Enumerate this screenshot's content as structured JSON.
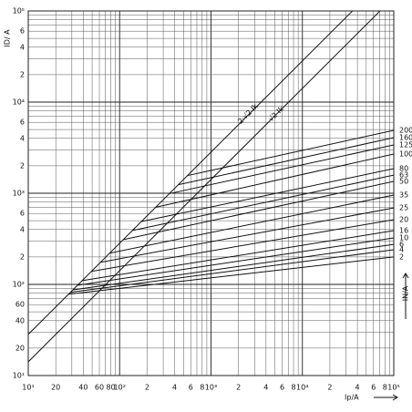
{
  "chart_data": {
    "type": "line",
    "log_x": true,
    "log_y": true,
    "grid": true,
    "color": "#111111",
    "x_label": "Ip/A",
    "y_label": "ID/ A",
    "y2_label": "IN/A",
    "annotations": [
      "2·√2 Ik",
      "√2 Ik"
    ],
    "xlim": [
      10,
      100000
    ],
    "ylim": [
      10,
      100000
    ],
    "xticks": [
      {
        "value": 10,
        "label": "10¹"
      },
      20,
      40,
      60,
      80,
      {
        "value": 100,
        "label": "10²"
      },
      {
        "value": 200,
        "label": "2"
      },
      {
        "value": 400,
        "label": "4"
      },
      {
        "value": 600,
        "label": "6"
      },
      {
        "value": 800,
        "label": "8"
      },
      {
        "value": 1000,
        "label": "10³"
      },
      {
        "value": 2000,
        "label": "2"
      },
      {
        "value": 4000,
        "label": "4"
      },
      {
        "value": 6000,
        "label": "6"
      },
      {
        "value": 8000,
        "label": "8"
      },
      {
        "value": 10000,
        "label": "10⁴"
      },
      {
        "value": 20000,
        "label": "2"
      },
      {
        "value": 40000,
        "label": "4"
      },
      {
        "value": 60000,
        "label": "6"
      },
      {
        "value": 80000,
        "label": "8"
      },
      {
        "value": 100000,
        "label": "10⁵"
      }
    ],
    "yticks": [
      {
        "value": 10,
        "label": "10¹"
      },
      20,
      40,
      60,
      {
        "value": 100,
        "label": "10²"
      },
      {
        "value": 200,
        "label": "2"
      },
      {
        "value": 400,
        "label": "4"
      },
      {
        "value": 600,
        "label": "6"
      },
      {
        "value": 1000,
        "label": "10³"
      },
      {
        "value": 2000,
        "label": "2"
      },
      {
        "value": 4000,
        "label": "4"
      },
      {
        "value": 6000,
        "label": "6"
      },
      {
        "value": 10000,
        "label": "10⁴"
      },
      {
        "value": 20000,
        "label": "2"
      },
      {
        "value": 40000,
        "label": "4"
      },
      {
        "value": 60000,
        "label": "6"
      },
      {
        "value": 100000,
        "label": "10⁵"
      }
    ],
    "xminor": [
      30,
      50,
      70,
      90,
      300,
      500,
      700,
      900,
      3000,
      5000,
      7000,
      9000,
      30000,
      50000,
      70000,
      90000
    ],
    "yminor": [
      30,
      50,
      70,
      80,
      90,
      300,
      500,
      700,
      800,
      900,
      3000,
      5000,
      7000,
      8000,
      9000,
      30000,
      50000,
      70000,
      80000,
      90000
    ],
    "ik_lines": [
      {
        "x": [
          10,
          35355
        ],
        "values": [
          28.28,
          100000
        ]
      },
      {
        "x": [
          10,
          70711
        ],
        "values": [
          14.14,
          100000
        ]
      }
    ],
    "series": [
      {
        "name": "200",
        "x": [
          550,
          100000
        ],
        "values": [
          1560,
          4900
        ]
      },
      {
        "name": "160",
        "x": [
          440,
          100000
        ],
        "values": [
          1240,
          4070
        ]
      },
      {
        "name": "125",
        "x": [
          350,
          100000
        ],
        "values": [
          990,
          3390
        ]
      },
      {
        "name": "100",
        "x": [
          245,
          100000
        ],
        "values": [
          700,
          2690
        ]
      },
      {
        "name": "80",
        "x": [
          174,
          100000
        ],
        "values": [
          490,
          1860
        ]
      },
      {
        "name": "63",
        "x": [
          138,
          100000
        ],
        "values": [
          390,
          1580
        ]
      },
      {
        "name": "50",
        "x": [
          110,
          100000
        ],
        "values": [
          310,
          1350
        ]
      },
      {
        "name": "35",
        "x": [
          78,
          100000
        ],
        "values": [
          220,
          955
        ]
      },
      {
        "name": "25",
        "x": [
          62,
          100000
        ],
        "values": [
          175,
          690
        ]
      },
      {
        "name": "20",
        "x": [
          49,
          100000
        ],
        "values": [
          139,
          513
        ]
      },
      {
        "name": "16",
        "x": [
          39,
          100000
        ],
        "values": [
          110,
          389
        ]
      },
      {
        "name": "10",
        "x": [
          35,
          100000
        ],
        "values": [
          98,
          324
        ]
      },
      {
        "name": "6",
        "x": [
          31,
          100000
        ],
        "values": [
          87,
          275
        ]
      },
      {
        "name": "4",
        "x": [
          29,
          100000
        ],
        "values": [
          82,
          240
        ]
      },
      {
        "name": "2",
        "x": [
          27.5,
          100000
        ],
        "values": [
          78,
          200
        ]
      }
    ]
  }
}
